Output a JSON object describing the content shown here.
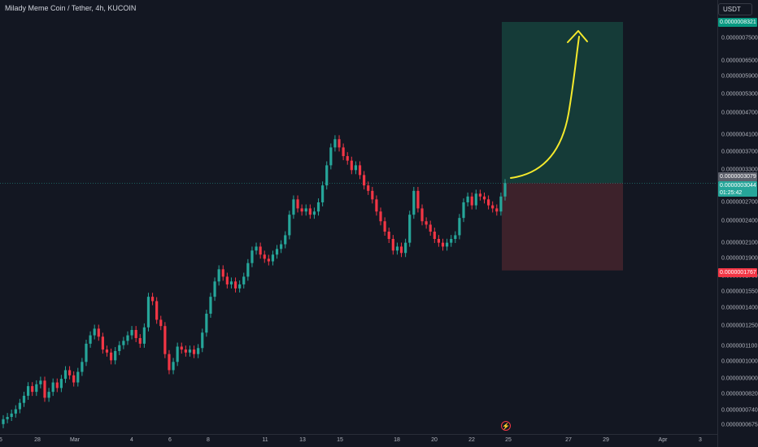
{
  "header": {
    "title": "Milady Meme Coin / Tether, 4h, KUCOIN"
  },
  "currency_button": {
    "label": "USDT"
  },
  "price_axis": {
    "ticks": [
      "0.0000007500",
      "0.0000006500",
      "0.0000005900",
      "0.0000005300",
      "0.0000004700",
      "0.0000004100",
      "0.0000003700",
      "0.0000003300",
      "0.0000002700",
      "0.0000002400",
      "0.0000002100",
      "0.0000001900",
      "0.0000001700",
      "0.0000001550",
      "0.0000001400",
      "0.0000001250",
      "0.0000001100",
      "0.0000001000",
      "0.0000000900",
      "0.0000000820",
      "0.0000000740",
      "0.0000000675"
    ],
    "target_label": "0.0000008321",
    "last_price_label": "0.0000003079",
    "current_price_label": "0.0000003044",
    "countdown": "01:25:42",
    "stop_label": "0.0000001767"
  },
  "time_axis": {
    "ticks": [
      "5",
      "28",
      "Mar",
      "4",
      "6",
      "8",
      "11",
      "13",
      "15",
      "18",
      "20",
      "22",
      "25",
      "27",
      "29",
      "Apr",
      "3"
    ]
  },
  "colors": {
    "up": "#26a69a",
    "down": "#f23645",
    "background": "#131722",
    "target_zone": "#153b38",
    "stop_zone": "#3d222b",
    "arrow": "#f5ea2c",
    "target_badge": "#089981",
    "last_badge": "#5d606b"
  },
  "chart_data": {
    "type": "candlestick",
    "title": "Milady Meme Coin / Tether, 4h, KUCOIN",
    "y_scale": "log",
    "ylim": [
      6.4e-08,
      9.1e-07
    ],
    "x_range": [
      "Feb 25",
      "Apr 3"
    ],
    "grid": false,
    "close_series": [
      7e-08,
      7.1e-08,
      7.25e-08,
      7.45e-08,
      7.75e-08,
      8.1e-08,
      8.6e-08,
      8.3e-08,
      8.7e-08,
      8.9e-08,
      8e-08,
      8.3e-08,
      8.8e-08,
      8.5e-08,
      9e-08,
      9.5e-08,
      9.2e-08,
      8.8e-08,
      9.4e-08,
      1e-07,
      1.12e-07,
      1.18e-07,
      1.23e-07,
      1.17e-07,
      1.08e-07,
      1.06e-07,
      1.01e-07,
      1.07e-07,
      1.11e-07,
      1.14e-07,
      1.18e-07,
      1.22e-07,
      1.16e-07,
      1.12e-07,
      1.24e-07,
      1.5e-07,
      1.46e-07,
      1.3e-07,
      1.25e-07,
      1.05e-07,
      9.5e-08,
      1e-07,
      1.1e-07,
      1.08e-07,
      1.06e-07,
      1.08e-07,
      1.05e-07,
      1.09e-07,
      1.2e-07,
      1.35e-07,
      1.5e-07,
      1.65e-07,
      1.78e-07,
      1.7e-07,
      1.62e-07,
      1.65e-07,
      1.58e-07,
      1.62e-07,
      1.7e-07,
      1.85e-07,
      2e-07,
      2.05e-07,
      1.95e-07,
      1.9e-07,
      1.87e-07,
      1.95e-07,
      2.02e-07,
      2.08e-07,
      2.2e-07,
      2.5e-07,
      2.75e-07,
      2.6e-07,
      2.55e-07,
      2.6e-07,
      2.5e-07,
      2.55e-07,
      2.7e-07,
      3e-07,
      3.4e-07,
      3.8e-07,
      4e-07,
      3.8e-07,
      3.6e-07,
      3.5e-07,
      3.3e-07,
      3.4e-07,
      3.2e-07,
      3e-07,
      2.9e-07,
      2.75e-07,
      2.55e-07,
      2.4e-07,
      2.25e-07,
      2.15e-07,
      2e-07,
      2.05e-07,
      1.97e-07,
      2.1e-07,
      2.5e-07,
      2.9e-07,
      2.6e-07,
      2.4e-07,
      2.35e-07,
      2.25e-07,
      2.15e-07,
      2.1e-07,
      2.05e-07,
      2.1e-07,
      2.15e-07,
      2.2e-07,
      2.45e-07,
      2.7e-07,
      2.8e-07,
      2.65e-07,
      2.85e-07,
      2.8e-07,
      2.75e-07,
      2.65e-07,
      2.6e-07,
      2.55e-07,
      2.8e-07,
      3.044e-07
    ],
    "position": {
      "entry": 3.044e-07,
      "target": 8.321e-07,
      "stop": 1.767e-07
    },
    "annotations": [
      "upward arrow from entry toward target"
    ]
  }
}
